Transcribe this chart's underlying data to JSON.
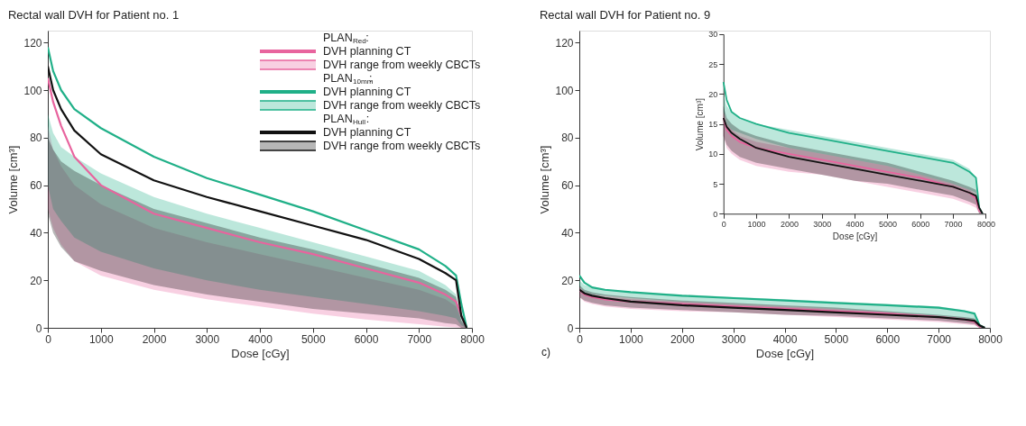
{
  "chart_data": [
    {
      "type": "line",
      "title": "Rectal wall DVH for Patient no. 1",
      "xlabel": "Dose  [cGy]",
      "ylabel": "Volume [cm³]",
      "xlim": [
        0,
        8000
      ],
      "ylim": [
        0,
        125
      ],
      "xticks": [
        0,
        1000,
        2000,
        3000,
        4000,
        5000,
        6000,
        7000,
        8000
      ],
      "yticks": [
        0,
        20,
        40,
        60,
        80,
        100,
        120
      ],
      "grid": false,
      "legend": "top right",
      "x": [
        0,
        100,
        250,
        500,
        1000,
        2000,
        3000,
        4000,
        5000,
        6000,
        7000,
        7500,
        7700,
        7800,
        7900
      ],
      "annotations": [
        "PLAN$_{Red}$:",
        "DVH range from weekly CBCTs",
        "PLAN$_{10mm}$:",
        "DVH range from weekly CBCTs",
        "PLAN$_{Hull}$:",
        "DVH range from weekly CBCTs"
      ],
      "series": [
        {
          "name": "DVH planning CT",
          "color": "#e8649e",
          "values": [
            105,
            95,
            85,
            72,
            60,
            48,
            42,
            36,
            31,
            25,
            19,
            14,
            11,
            5,
            0
          ],
          "lower": [
            50,
            42,
            35,
            28,
            22,
            16,
            12,
            9,
            6,
            3.5,
            1.5,
            0.5,
            0.2,
            0,
            0
          ],
          "upper": [
            85,
            75,
            68,
            60,
            52,
            42,
            36,
            31,
            26,
            21,
            16,
            12,
            9,
            3,
            0
          ]
        },
        {
          "name": "DVH planning CT",
          "color": "#20b088",
          "values": [
            118,
            108,
            100,
            92,
            84,
            72,
            63,
            56,
            49,
            41,
            33,
            26,
            22,
            10,
            0
          ],
          "lower": [
            60,
            50,
            45,
            38,
            32,
            25,
            20,
            16,
            13,
            10,
            7,
            5,
            4,
            1,
            0
          ],
          "upper": [
            90,
            82,
            76,
            72,
            65,
            55,
            48,
            42,
            36,
            30,
            24,
            18,
            14,
            4,
            0
          ]
        },
        {
          "name": "DVH planning CT",
          "color": "#111111",
          "values": [
            110,
            100,
            92,
            83,
            73,
            62,
            55,
            49,
            43,
            37,
            29,
            23,
            20,
            5,
            0
          ],
          "lower": [
            48,
            40,
            34,
            28,
            24,
            18,
            14,
            11,
            8,
            6,
            4,
            2,
            1.5,
            0,
            0
          ],
          "upper": [
            80,
            75,
            70,
            66,
            60,
            50,
            44,
            38,
            33,
            27,
            21,
            16,
            13,
            3,
            0
          ]
        }
      ]
    },
    {
      "type": "line",
      "title": "Rectal wall DVH for Patient no. 9",
      "xlabel": "Dose  [cGy]",
      "ylabel": "Volume [cm³]",
      "xlim": [
        0,
        8000
      ],
      "ylim": [
        0,
        125
      ],
      "xticks": [
        0,
        1000,
        2000,
        3000,
        4000,
        5000,
        6000,
        7000,
        8000
      ],
      "yticks": [
        0,
        20,
        40,
        60,
        80,
        100,
        120
      ],
      "grid": false,
      "x": [
        0,
        100,
        250,
        500,
        1000,
        2000,
        3000,
        4000,
        5000,
        6000,
        7000,
        7500,
        7700,
        7800,
        7900
      ],
      "annotations": [
        "c)"
      ],
      "series": [
        {
          "color": "#e8649e",
          "values": [
            16,
            14,
            13,
            12,
            11,
            10,
            9,
            8,
            7,
            6,
            4.5,
            3.5,
            2.5,
            0.5,
            0
          ],
          "lower": [
            13,
            11,
            10,
            9,
            8,
            7,
            6.5,
            5.5,
            4.5,
            3.5,
            2.5,
            1.5,
            1,
            0,
            0
          ],
          "upper": [
            17,
            15,
            14,
            13,
            12,
            11,
            10,
            9,
            8,
            6.5,
            5,
            4,
            3,
            0.5,
            0
          ]
        },
        {
          "color": "#20b088",
          "values": [
            22,
            19,
            17,
            16,
            15,
            13.5,
            12.5,
            11.5,
            10.5,
            9.5,
            8.5,
            7,
            6,
            1,
            0
          ],
          "lower": [
            17,
            15,
            14,
            13.5,
            12.5,
            11,
            10,
            9,
            8,
            6.5,
            5,
            4,
            3.5,
            1,
            0
          ],
          "upper": [
            20,
            18,
            17,
            16,
            15,
            14,
            13,
            12,
            11,
            10,
            9,
            7.5,
            6,
            1,
            0
          ]
        },
        {
          "color": "#111111",
          "values": [
            16,
            14.5,
            13.5,
            12.5,
            11,
            9.5,
            8.5,
            7.5,
            6.5,
            5.5,
            4.5,
            3.5,
            3,
            1,
            0
          ],
          "lower": [
            13,
            11.5,
            10.5,
            9.5,
            8.5,
            7.5,
            6.5,
            5.5,
            5,
            4,
            3,
            2,
            1.5,
            0,
            0
          ],
          "upper": [
            18,
            16,
            15,
            14,
            13,
            11.5,
            10.5,
            9.5,
            8.5,
            7,
            5.5,
            4.5,
            4,
            1,
            0
          ]
        }
      ]
    },
    {
      "type": "line",
      "xlabel": "Dose  [cGy]",
      "ylabel": "Volume [cm³]",
      "xlim": [
        0,
        8000
      ],
      "ylim": [
        0,
        30
      ],
      "xticks": [
        0,
        1000,
        2000,
        3000,
        4000,
        5000,
        6000,
        7000,
        8000
      ],
      "yticks": [
        0,
        5,
        10,
        15,
        20,
        25,
        30
      ],
      "grid": false,
      "x": [
        0,
        100,
        250,
        500,
        1000,
        2000,
        3000,
        4000,
        5000,
        6000,
        7000,
        7500,
        7700,
        7800,
        7900
      ],
      "series": [
        {
          "color": "#e8649e",
          "values": [
            16,
            14,
            13,
            12,
            11,
            10,
            9,
            8,
            7,
            6,
            4.5,
            3.5,
            2.5,
            0.5,
            0
          ],
          "lower": [
            13,
            11,
            10,
            9,
            8,
            7,
            6.5,
            5.5,
            4.5,
            3.5,
            2.5,
            1.5,
            1,
            0,
            0
          ],
          "upper": [
            17,
            15,
            14,
            13,
            12,
            11,
            10,
            9,
            8,
            6.5,
            5,
            4,
            3,
            0.5,
            0
          ]
        },
        {
          "color": "#20b088",
          "values": [
            22,
            19,
            17,
            16,
            15,
            13.5,
            12.5,
            11.5,
            10.5,
            9.5,
            8.5,
            7,
            6,
            1,
            0
          ],
          "lower": [
            17,
            15,
            14,
            13.5,
            12.5,
            11,
            10,
            9,
            8,
            6.5,
            5,
            4,
            3.5,
            1,
            0
          ],
          "upper": [
            20,
            18,
            17,
            16,
            15,
            14,
            13,
            12,
            11,
            10,
            9,
            7.5,
            6,
            1,
            0
          ]
        },
        {
          "color": "#111111",
          "values": [
            16,
            14.5,
            13.5,
            12.5,
            11,
            9.5,
            8.5,
            7.5,
            6.5,
            5.5,
            4.5,
            3.5,
            3,
            1,
            0
          ],
          "lower": [
            13,
            11.5,
            10.5,
            9.5,
            8.5,
            7.5,
            6.5,
            5.5,
            5,
            4,
            3,
            2,
            1.5,
            0,
            0
          ],
          "upper": [
            18,
            16,
            15,
            14,
            13,
            11.5,
            10.5,
            9.5,
            8.5,
            7,
            5.5,
            4.5,
            4,
            1,
            0
          ]
        }
      ]
    }
  ]
}
